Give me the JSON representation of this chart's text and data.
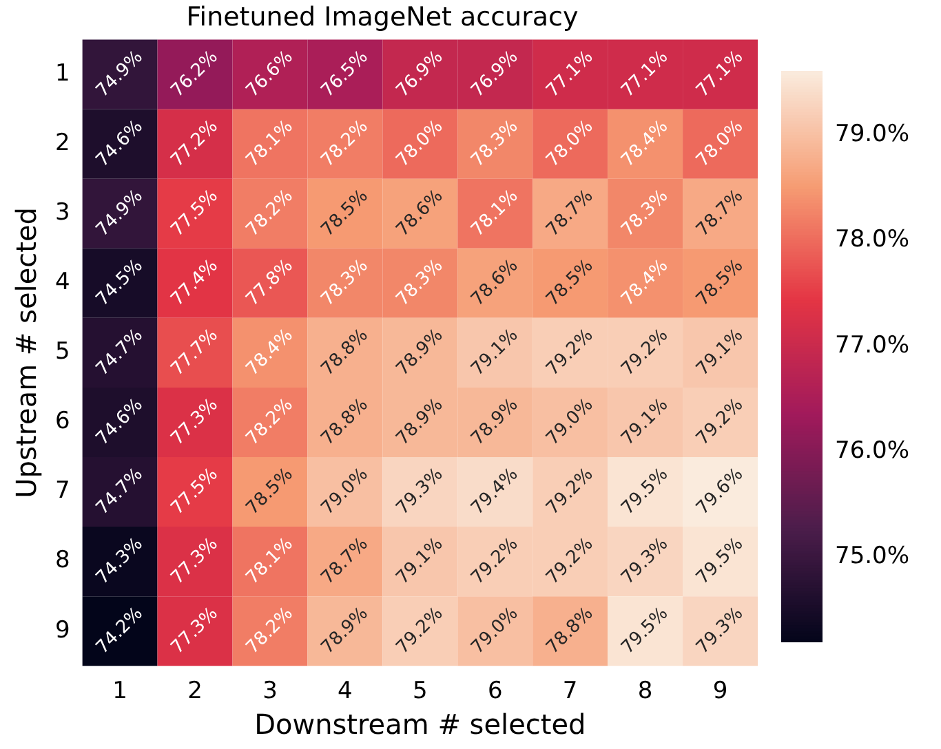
{
  "chart_data": {
    "type": "heatmap",
    "title": "Finetuned ImageNet accuracy",
    "xlabel": "Downstream # selected",
    "ylabel": "Upstream # selected",
    "categories": [
      "1",
      "2",
      "3",
      "4",
      "5",
      "6",
      "7",
      "8",
      "9"
    ],
    "y_categories": [
      "1",
      "2",
      "3",
      "4",
      "5",
      "6",
      "7",
      "8",
      "9"
    ],
    "cells": [
      [
        74.9,
        76.2,
        76.6,
        76.5,
        76.9,
        76.9,
        77.1,
        77.1,
        77.1
      ],
      [
        74.6,
        77.2,
        78.1,
        78.2,
        78.0,
        78.3,
        78.0,
        78.4,
        78.0
      ],
      [
        74.9,
        77.5,
        78.2,
        78.5,
        78.6,
        78.1,
        78.7,
        78.3,
        78.7
      ],
      [
        74.5,
        77.4,
        77.8,
        78.3,
        78.3,
        78.6,
        78.5,
        78.4,
        78.5
      ],
      [
        74.7,
        77.7,
        78.4,
        78.8,
        78.9,
        79.1,
        79.2,
        79.2,
        79.1
      ],
      [
        74.6,
        77.3,
        78.2,
        78.8,
        78.9,
        78.9,
        79.0,
        79.1,
        79.2
      ],
      [
        74.7,
        77.5,
        78.5,
        79.0,
        79.3,
        79.4,
        79.2,
        79.5,
        79.6
      ],
      [
        74.3,
        77.3,
        78.1,
        78.7,
        79.1,
        79.2,
        79.2,
        79.3,
        79.5
      ],
      [
        74.2,
        77.3,
        78.2,
        78.9,
        79.2,
        79.0,
        78.8,
        79.5,
        79.3
      ]
    ],
    "cell_labels": [
      [
        "74.9%",
        "76.2%",
        "76.6%",
        "76.5%",
        "76.9%",
        "76.9%",
        "77.1%",
        "77.1%",
        "77.1%"
      ],
      [
        "74.6%",
        "77.2%",
        "78.1%",
        "78.2%",
        "78.0%",
        "78.3%",
        "78.0%",
        "78.4%",
        "78.0%"
      ],
      [
        "74.9%",
        "77.5%",
        "78.2%",
        "78.5%",
        "78.6%",
        "78.1%",
        "78.7%",
        "78.3%",
        "78.7%"
      ],
      [
        "74.5%",
        "77.4%",
        "77.8%",
        "78.3%",
        "78.3%",
        "78.6%",
        "78.5%",
        "78.4%",
        "78.5%"
      ],
      [
        "74.7%",
        "77.7%",
        "78.4%",
        "78.8%",
        "78.9%",
        "79.1%",
        "79.2%",
        "79.2%",
        "79.1%"
      ],
      [
        "74.6%",
        "77.3%",
        "78.2%",
        "78.8%",
        "78.9%",
        "78.9%",
        "79.0%",
        "79.1%",
        "79.2%"
      ],
      [
        "74.7%",
        "77.5%",
        "78.5%",
        "79.0%",
        "79.3%",
        "79.4%",
        "79.2%",
        "79.5%",
        "79.6%"
      ],
      [
        "74.3%",
        "77.3%",
        "78.1%",
        "78.7%",
        "79.1%",
        "79.2%",
        "79.2%",
        "79.3%",
        "79.5%"
      ],
      [
        "74.2%",
        "77.3%",
        "78.2%",
        "78.9%",
        "79.2%",
        "79.0%",
        "78.8%",
        "79.5%",
        "79.3%"
      ]
    ],
    "clim": [
      74.2,
      79.6
    ],
    "cticks": [
      {
        "value": 75,
        "label": "75.0%"
      },
      {
        "value": 76,
        "label": "76.0%"
      },
      {
        "value": 77,
        "label": "77.0%"
      },
      {
        "value": 78,
        "label": "78.0%"
      },
      {
        "value": 79,
        "label": "79.0%"
      }
    ]
  }
}
